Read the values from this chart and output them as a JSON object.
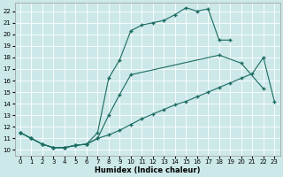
{
  "xlabel": "Humidex (Indice chaleur)",
  "bg_color": "#cce8e8",
  "grid_color": "#b8d8d8",
  "line_color": "#1a6b60",
  "xlim": [
    -0.5,
    23.5
  ],
  "ylim": [
    9.5,
    22.7
  ],
  "xticks": [
    0,
    1,
    2,
    3,
    4,
    5,
    6,
    7,
    8,
    9,
    10,
    11,
    12,
    13,
    14,
    15,
    16,
    17,
    18,
    19,
    20,
    21,
    22,
    23
  ],
  "yticks": [
    10,
    11,
    12,
    13,
    14,
    15,
    16,
    17,
    18,
    19,
    20,
    21,
    22
  ],
  "line_top": {
    "x": [
      0,
      1,
      2,
      3,
      4,
      5,
      6,
      7,
      8,
      9,
      10,
      11,
      12,
      13,
      14,
      15,
      16,
      17,
      18,
      19
    ],
    "y": [
      11.5,
      11.0,
      10.5,
      10.2,
      10.2,
      10.4,
      10.5,
      11.5,
      16.2,
      17.8,
      20.3,
      20.8,
      21.0,
      21.2,
      21.7,
      22.3,
      22.0,
      22.2,
      19.5,
      19.5
    ]
  },
  "line_mid": {
    "x": [
      0,
      1,
      2,
      3,
      4,
      5,
      6,
      7,
      8,
      9,
      10,
      18,
      20,
      22
    ],
    "y": [
      11.5,
      11.0,
      10.5,
      10.2,
      10.2,
      10.4,
      10.5,
      11.0,
      13.0,
      14.8,
      16.5,
      18.2,
      17.5,
      15.3
    ]
  },
  "line_bot": {
    "x": [
      0,
      1,
      2,
      3,
      4,
      5,
      6,
      7,
      8,
      9,
      10,
      11,
      12,
      13,
      14,
      15,
      16,
      17,
      18,
      19,
      20,
      21,
      22,
      23
    ],
    "y": [
      11.5,
      11.0,
      10.5,
      10.2,
      10.2,
      10.4,
      10.5,
      11.0,
      11.3,
      11.7,
      12.2,
      12.7,
      13.1,
      13.5,
      13.9,
      14.2,
      14.6,
      15.0,
      15.4,
      15.8,
      16.2,
      16.6,
      18.0,
      14.2
    ]
  }
}
